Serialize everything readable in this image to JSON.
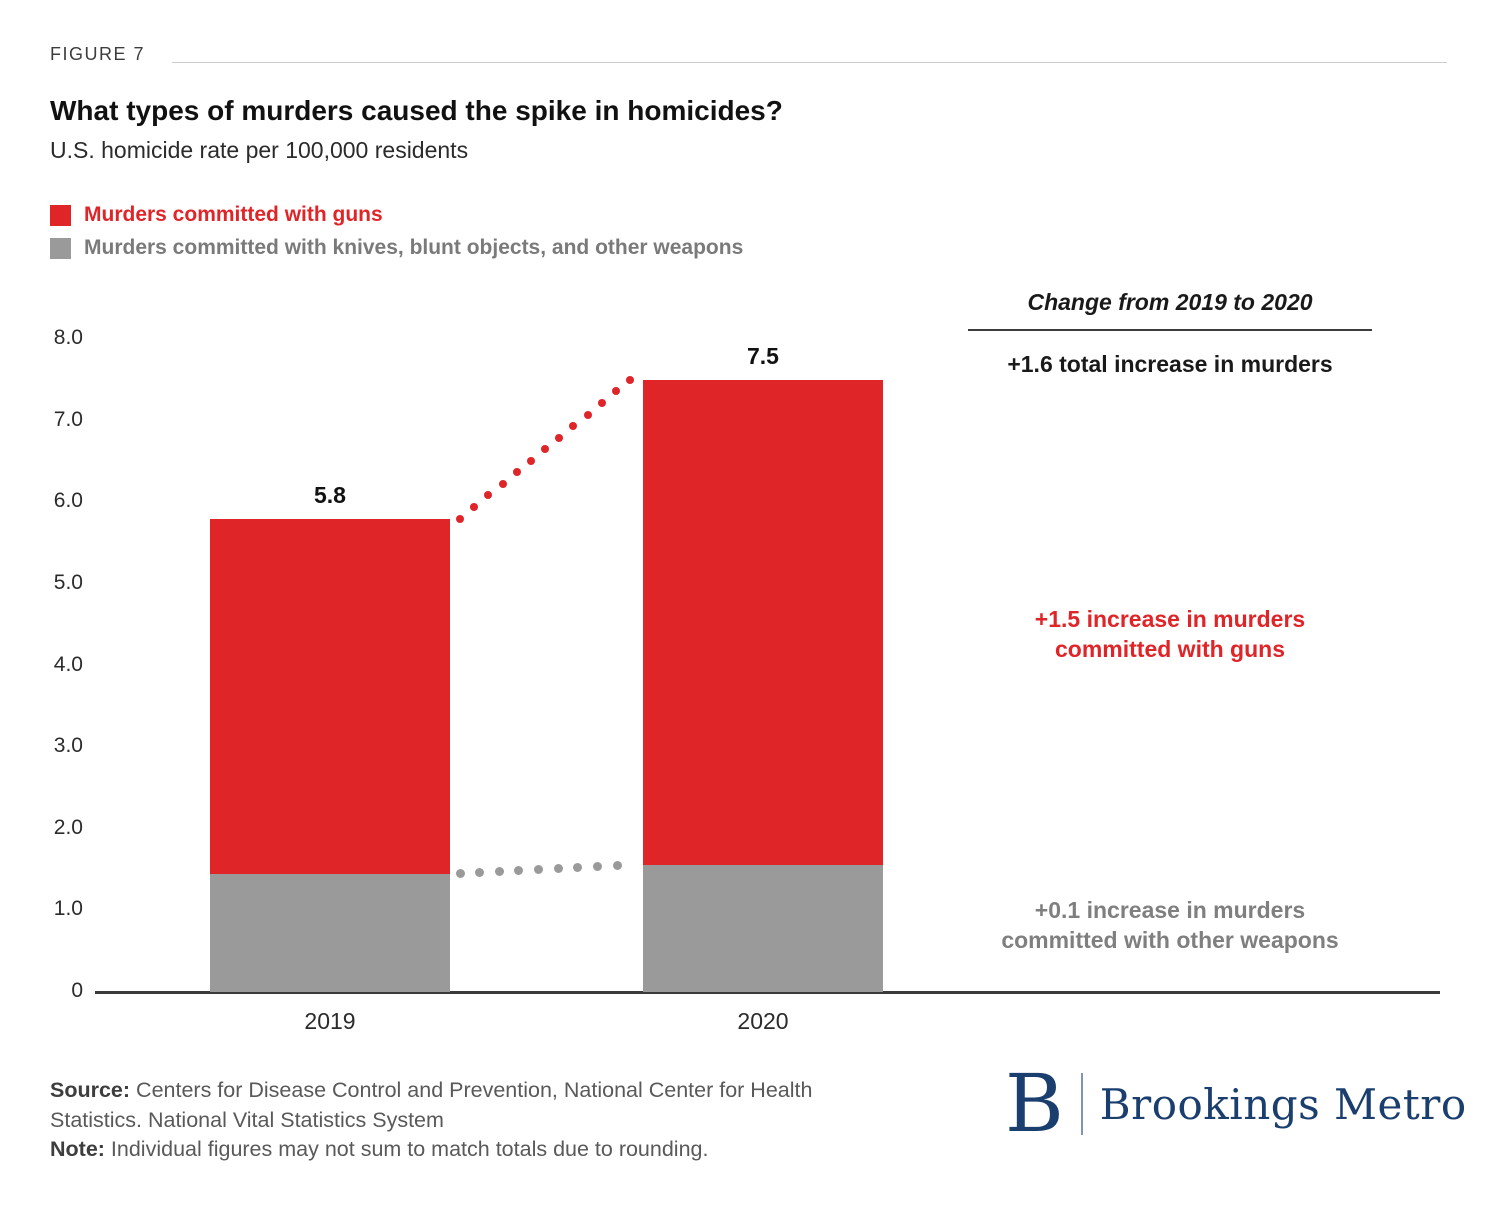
{
  "figure_label": "FIGURE 7",
  "title": "What types of murders caused the spike in homicides?",
  "subtitle": "U.S. homicide rate per 100,000 residents",
  "legend": [
    {
      "label": "Murders committed with guns",
      "color": "#e02529"
    },
    {
      "label": "Murders committed with knives, blunt objects, and other weapons",
      "color": "#9a9a9a"
    }
  ],
  "chart_data": {
    "type": "bar",
    "stacked": true,
    "title": "What types of murders caused the spike in homicides?",
    "subtitle": "U.S. homicide rate per 100,000 residents",
    "categories": [
      "2019",
      "2020"
    ],
    "series": [
      {
        "name": "Murders committed with knives, blunt objects, and other weapons",
        "color": "#9a9a9a",
        "values": [
          1.45,
          1.55
        ]
      },
      {
        "name": "Murders committed with guns",
        "color": "#e02529",
        "values": [
          4.35,
          5.95
        ]
      }
    ],
    "totals": [
      5.8,
      7.5
    ],
    "total_labels": [
      "5.8",
      "7.5"
    ],
    "ylim": [
      0,
      8.0
    ],
    "yticks": [
      "8.0",
      "7.0",
      "6.0",
      "5.0",
      "4.0",
      "3.0",
      "2.0",
      "1.0",
      "0"
    ],
    "grid": false,
    "legend_position": "top-left"
  },
  "annotations": {
    "header": "Change from 2019 to 2020",
    "total": "+1.6 total increase in murders",
    "guns_lines": [
      "+1.5 increase in murders",
      "committed with guns"
    ],
    "other_lines": [
      "+0.1 increase in murders",
      "committed with other weapons"
    ]
  },
  "footer": {
    "source_label": "Source:",
    "source_text": "Centers for Disease Control and Prevention, National Center for Health Statistics. National Vital Statistics System",
    "note_label": "Note:",
    "note_text": "Individual figures may not sum to match totals due to rounding."
  },
  "logo": {
    "letter": "B",
    "name": "Brookings Metro",
    "color": "#1a3e6e"
  }
}
